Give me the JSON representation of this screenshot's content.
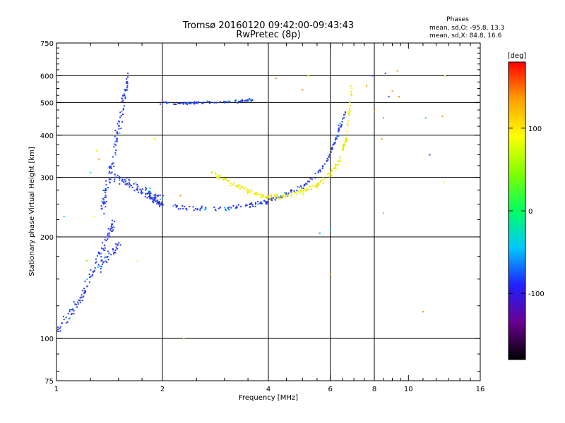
{
  "chart_data": {
    "type": "scatter",
    "title": "Tromsø 20160120 09:42:00-09:43:43",
    "subtitle": "RwPretec (8p)",
    "stats": {
      "heading": "Phases",
      "o_line": "mean, sd,O: -95.8, 13.3",
      "x_line": "mean, sd,X: 84.8, 16.6"
    },
    "xlabel": "Frequency [MHz]",
    "ylabel": "Stationary phase Virtual Height [km]",
    "x_scale": "log",
    "y_scale": "log",
    "xlim": [
      1,
      16
    ],
    "ylim": [
      75,
      750
    ],
    "x_ticks": [
      1,
      2,
      4,
      6,
      8,
      10,
      16
    ],
    "x_tick_labels": [
      "1",
      "2",
      "4",
      "6",
      "8",
      "10",
      "16"
    ],
    "x_major_grid": [
      2,
      4,
      6,
      8
    ],
    "x_minor_ticks": [
      1.25,
      1.5,
      1.75,
      2.5,
      3,
      3.5,
      4.5,
      5,
      5.5,
      6.5,
      7,
      7.5,
      8.5,
      9,
      9.5,
      11,
      12,
      13,
      14,
      15
    ],
    "y_ticks": [
      75,
      100,
      200,
      300,
      400,
      500,
      600,
      750
    ],
    "y_tick_labels": [
      "75",
      "100",
      "200",
      "300",
      "400",
      "500",
      "600",
      "750"
    ],
    "y_major_grid": [
      100,
      200,
      300,
      400,
      500,
      600
    ],
    "y_minor_ticks": [
      80,
      90,
      125,
      150,
      175,
      225,
      250,
      275,
      325,
      350,
      375,
      425,
      450,
      475,
      525,
      550,
      575,
      625,
      650,
      675,
      700,
      725
    ],
    "grid": true,
    "colorbar": {
      "label": "[deg]",
      "range": [
        -180,
        180
      ],
      "ticks": [
        100,
        0,
        -100
      ],
      "tick_labels": [
        "100",
        "0",
        "-100"
      ],
      "colors": [
        "#000000",
        "#6a0090",
        "#2020ff",
        "#00c8ff",
        "#00ff60",
        "#80ff00",
        "#ffff00",
        "#ffa000",
        "#ff0000"
      ]
    },
    "series": [
      {
        "role": "O-mode E/Es traces",
        "color": "#2a3cf0",
        "clusters": [
          {
            "f_start": 1.0,
            "f_end": 1.2,
            "h_start": 105,
            "h_end": 135,
            "spread": 0.05,
            "n": 40
          },
          {
            "f_start": 1.15,
            "f_end": 1.45,
            "h_start": 130,
            "h_end": 220,
            "spread": 0.07,
            "n": 70
          },
          {
            "f_start": 1.3,
            "f_end": 1.5,
            "h_start": 160,
            "h_end": 190,
            "spread": 0.05,
            "n": 40
          },
          {
            "f_start": 1.35,
            "f_end": 1.6,
            "h_start": 240,
            "h_end": 600,
            "spread": 0.06,
            "n": 110
          },
          {
            "f_start": 1.45,
            "f_end": 2.0,
            "h_start": 300,
            "h_end": 255,
            "spread": 0.05,
            "n": 90
          }
        ]
      },
      {
        "role": "O-mode F trace",
        "color": "#2a3cf0",
        "curve": {
          "f": [
            1.8,
            2.0,
            2.5,
            3.0,
            3.5,
            4.0,
            4.5,
            5.0,
            5.5,
            5.9,
            6.3,
            6.6
          ],
          "h": [
            265,
            248,
            242,
            243,
            247,
            255,
            268,
            282,
            305,
            340,
            400,
            470
          ],
          "spread": 0.025,
          "n": 220
        }
      },
      {
        "role": "O-mode upper trace",
        "color": "#2a3cf0",
        "curve": {
          "f": [
            1.95,
            2.2,
            2.6,
            3.0,
            3.4,
            3.6
          ],
          "h": [
            500,
            495,
            500,
            502,
            505,
            510
          ],
          "spread": 0.012,
          "n": 90
        }
      },
      {
        "role": "X-mode F trace",
        "color": "#f0f000",
        "curve": {
          "f": [
            2.75,
            3.2,
            3.6,
            4.0,
            4.5,
            5.0,
            5.5,
            6.0,
            6.4,
            6.7,
            6.9
          ],
          "h": [
            310,
            285,
            270,
            262,
            265,
            272,
            285,
            305,
            340,
            400,
            560
          ],
          "spread": 0.025,
          "n": 230
        }
      }
    ],
    "scattered_points": [
      {
        "f": 1.3,
        "h": 360,
        "color": "#f0f000"
      },
      {
        "f": 1.32,
        "h": 340,
        "color": "#f0a000"
      },
      {
        "f": 1.25,
        "h": 310,
        "color": "#00e0ff"
      },
      {
        "f": 1.28,
        "h": 230,
        "color": "#f0f000"
      },
      {
        "f": 1.22,
        "h": 170,
        "color": "#80ff00"
      },
      {
        "f": 1.26,
        "h": 160,
        "color": "#f0f000"
      },
      {
        "f": 1.05,
        "h": 230,
        "color": "#00c8ff"
      },
      {
        "f": 1.7,
        "h": 170,
        "color": "#f0f000"
      },
      {
        "f": 1.9,
        "h": 390,
        "color": "#f0f000"
      },
      {
        "f": 2.3,
        "h": 100,
        "color": "#f0f000"
      },
      {
        "f": 2.25,
        "h": 265,
        "color": "#f08000"
      },
      {
        "f": 4.2,
        "h": 590,
        "color": "#f08000"
      },
      {
        "f": 5.2,
        "h": 600,
        "color": "#f0f000"
      },
      {
        "f": 5.0,
        "h": 545,
        "color": "#f08000"
      },
      {
        "f": 6.0,
        "h": 210,
        "color": "#00c8ff"
      },
      {
        "f": 5.6,
        "h": 205,
        "color": "#00a0ff"
      },
      {
        "f": 6.0,
        "h": 155,
        "color": "#f0a000"
      },
      {
        "f": 7.6,
        "h": 560,
        "color": "#f0a000"
      },
      {
        "f": 7.9,
        "h": 600,
        "color": "#2a3cf0"
      },
      {
        "f": 8.0,
        "h": 470,
        "color": "#f0a000"
      },
      {
        "f": 8.4,
        "h": 390,
        "color": "#f0a000"
      },
      {
        "f": 8.5,
        "h": 450,
        "color": "#f08000"
      },
      {
        "f": 8.5,
        "h": 235,
        "color": "#f0a000"
      },
      {
        "f": 8.8,
        "h": 520,
        "color": "#2a3cf0"
      },
      {
        "f": 9.0,
        "h": 540,
        "color": "#f0a000"
      },
      {
        "f": 9.3,
        "h": 620,
        "color": "#f08000"
      },
      {
        "f": 9.4,
        "h": 520,
        "color": "#f08000"
      },
      {
        "f": 8.6,
        "h": 610,
        "color": "#2a3cf0"
      },
      {
        "f": 11.2,
        "h": 450,
        "color": "#00c8ff"
      },
      {
        "f": 11.5,
        "h": 350,
        "color": "#2a3cf0"
      },
      {
        "f": 11.0,
        "h": 120,
        "color": "#f08000"
      },
      {
        "f": 12.5,
        "h": 455,
        "color": "#f0a000"
      },
      {
        "f": 12.7,
        "h": 600,
        "color": "#f0f000"
      },
      {
        "f": 12.6,
        "h": 290,
        "color": "#f0f000"
      }
    ]
  }
}
